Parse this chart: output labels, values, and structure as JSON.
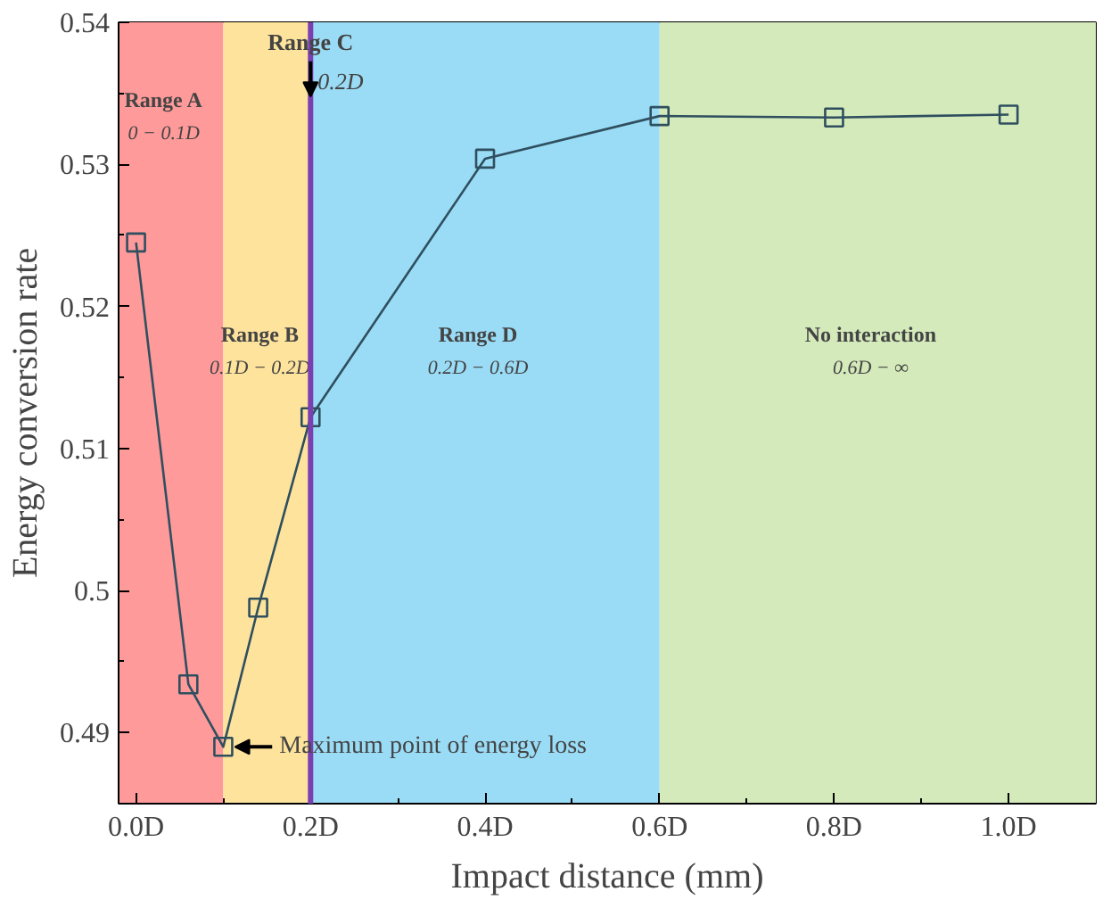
{
  "chart_data": {
    "type": "line",
    "xlabel": "Impact distance (mm)",
    "ylabel": "Energy conversion rate",
    "x": [
      0.0,
      0.06,
      0.1,
      0.14,
      0.2,
      0.4,
      0.6,
      0.8,
      1.0
    ],
    "series": [
      {
        "color": "#2f4f5f",
        "values": [
          0.5245,
          0.4934,
          0.489,
          0.4988,
          0.5122,
          0.5304,
          0.5334,
          0.5333,
          0.5335
        ]
      }
    ],
    "marker": "square",
    "line_style": "solid",
    "grid": false,
    "xlim": [
      -0.02,
      1.1
    ],
    "ylim": [
      0.485,
      0.54
    ],
    "xticks": [
      {
        "value": 0,
        "label": "0.0D"
      },
      {
        "value": 0.2,
        "label": "0.2D"
      },
      {
        "value": 0.4,
        "label": "0.4D"
      },
      {
        "value": 0.6,
        "label": "0.6D"
      },
      {
        "value": 0.8,
        "label": "0.8D"
      },
      {
        "value": 1.0,
        "label": "1.0D"
      }
    ],
    "yticks": [
      0.49,
      0.5,
      0.51,
      0.52,
      0.53,
      0.54
    ],
    "bands": [
      {
        "axis": "x",
        "from": -0.02,
        "to": 0.1,
        "label": "Range A\n0 − 0.1D",
        "color": "#ff9a9a"
      },
      {
        "axis": "x",
        "from": 0.1,
        "to": 0.2,
        "label": "Range B\n0.1D − 0.2D",
        "color": "#fde39c"
      },
      {
        "axis": "x",
        "from": 0.2,
        "to": 0.6,
        "label": "Range D\n0.2D − 0.6D",
        "color": "#9adcf6"
      },
      {
        "axis": "x",
        "from": 0.6,
        "to": 1.1,
        "label": "No interaction\n0.6D − ∞",
        "color": "#d4eabb"
      }
    ],
    "ref_lines": [
      {
        "axis": "x",
        "value": 0.2,
        "label": "Range C\n0.2D",
        "color": "#7a3fb0",
        "line_style": "solid"
      }
    ],
    "annotations": [
      {
        "text": "Maximum point of energy loss",
        "x": 0.1,
        "y": 0.489
      }
    ]
  }
}
